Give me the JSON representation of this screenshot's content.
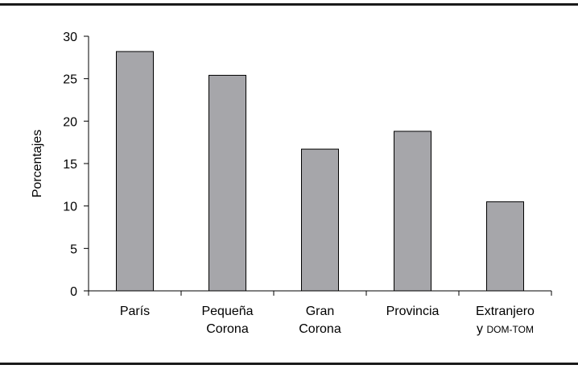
{
  "chart_data": {
    "type": "bar",
    "title": "",
    "xlabel": "",
    "ylabel": "Porcentajes",
    "ylim": [
      0,
      30
    ],
    "yticks": [
      0,
      5,
      10,
      15,
      20,
      25,
      30
    ],
    "grid": false,
    "legend": "none",
    "categories": [
      {
        "lines": [
          "París"
        ],
        "values": 28.2
      },
      {
        "lines": [
          "Pequeña",
          "Corona"
        ],
        "values": 25.4
      },
      {
        "lines": [
          "Gran",
          "Corona"
        ],
        "values": 16.7
      },
      {
        "lines": [
          "Provincia"
        ],
        "values": 18.8
      },
      {
        "lines": [
          "Extranjero",
          "y DOM-TOM"
        ],
        "values": 10.5
      }
    ],
    "category_labels": [
      "París",
      "Pequeña",
      "Corona",
      "Gran",
      "Corona",
      "Provincia",
      "Extranjero",
      "y",
      "DOM-TOM"
    ],
    "values": [
      28.2,
      25.4,
      16.7,
      18.8,
      10.5
    ],
    "bar_color": "#a6a6aa",
    "rule_color": "#1a1a1a"
  }
}
